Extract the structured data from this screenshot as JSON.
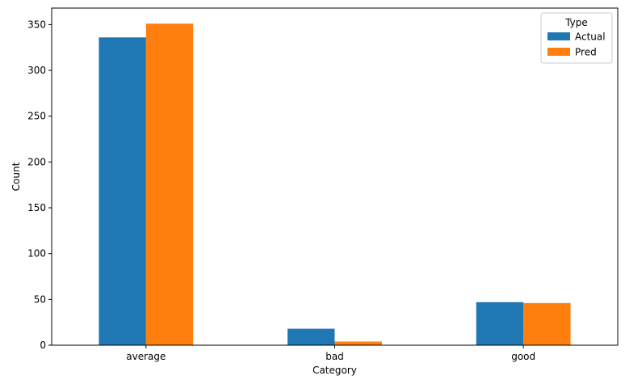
{
  "chart_data": {
    "type": "bar",
    "title": "",
    "xlabel": "Category",
    "ylabel": "Count",
    "categories": [
      "average",
      "bad",
      "good"
    ],
    "series": [
      {
        "name": "Actual",
        "values": [
          336,
          18,
          47
        ],
        "color": "#1f77b4"
      },
      {
        "name": "Pred",
        "values": [
          351,
          4,
          46
        ],
        "color": "#ff7f0e"
      }
    ],
    "ylim": [
      0,
      368
    ],
    "yticks": [
      0,
      50,
      100,
      150,
      200,
      250,
      300,
      350
    ],
    "legend": {
      "title": "Type",
      "placement": "top-right"
    },
    "grid": false
  }
}
